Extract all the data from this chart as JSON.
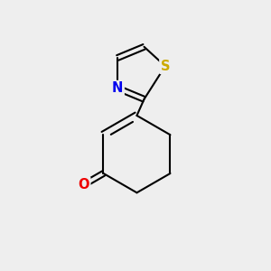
{
  "bg_color": "#eeeeee",
  "bond_color": "#000000",
  "bond_width": 1.5,
  "atoms": {
    "N": {
      "color": "#0000ee",
      "fontsize": 10.5,
      "label": "N"
    },
    "S": {
      "color": "#ccaa00",
      "fontsize": 10.5,
      "label": "S"
    },
    "O": {
      "color": "#ee0000",
      "fontsize": 10.5,
      "label": "O"
    }
  },
  "fig_width": 3.0,
  "fig_height": 3.0,
  "dpi": 100
}
